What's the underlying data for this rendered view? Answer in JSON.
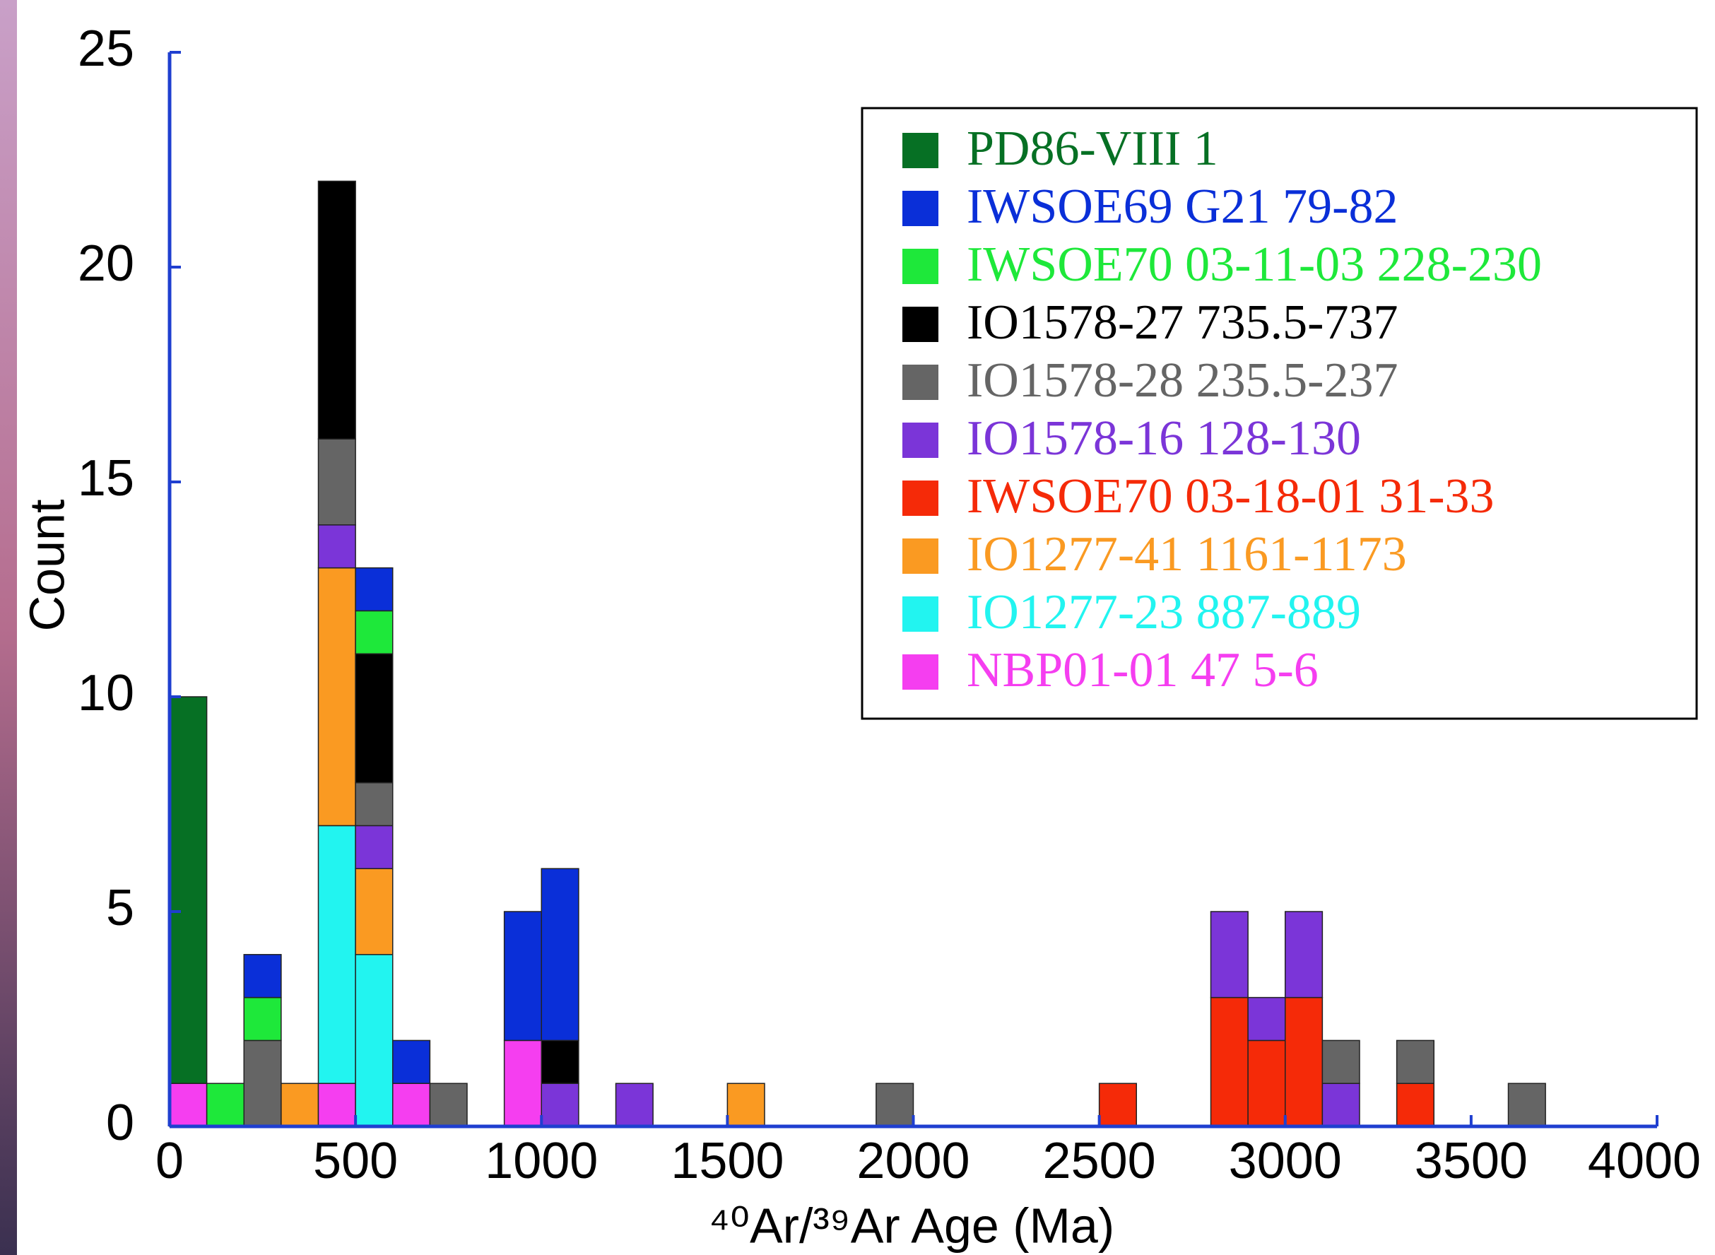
{
  "chart_data": {
    "type": "stacked-histogram",
    "x_label": "⁴⁰Ar/³⁹Ar Age (Ma)",
    "y_label": "Count",
    "bins": [
      0,
      100,
      200,
      300,
      400,
      500,
      600,
      700,
      800,
      900,
      1000,
      1100,
      1200,
      1300,
      1400,
      1500,
      1600,
      1700,
      1800,
      1900,
      2000,
      2100,
      2200,
      2300,
      2400,
      2500,
      2600,
      2700,
      2800,
      2900,
      3000,
      3100,
      3200,
      3300,
      3400,
      3500,
      3600,
      3700,
      3800,
      3900,
      4000
    ],
    "xlim": [
      0,
      4000
    ],
    "xticks": [
      0,
      500,
      1000,
      1500,
      2000,
      2500,
      3000,
      3500,
      4000
    ],
    "ylim": [
      0,
      25
    ],
    "yticks": [
      0,
      5,
      10,
      15,
      20,
      25
    ],
    "axis_color": "#1f3fd0",
    "series": [
      {
        "name": "PD86-VIII 1",
        "color": "#067024",
        "values": [
          9,
          0,
          0,
          0,
          0,
          0,
          0,
          0,
          0,
          0,
          0,
          0,
          0,
          0,
          0,
          0,
          0,
          0,
          0,
          0,
          0,
          0,
          0,
          0,
          0,
          0,
          0,
          0,
          0,
          0,
          0,
          0,
          0,
          0,
          0,
          0,
          0,
          0,
          0,
          0
        ]
      },
      {
        "name": "IWSOE69 G21 79-82",
        "color": "#0a2fd8",
        "values": [
          0,
          0,
          1,
          0,
          0,
          1,
          1,
          0,
          0,
          3,
          4,
          0,
          0,
          0,
          0,
          0,
          0,
          0,
          0,
          0,
          0,
          0,
          0,
          0,
          0,
          0,
          0,
          0,
          0,
          0,
          0,
          0,
          0,
          0,
          0,
          0,
          0,
          0,
          0,
          0
        ]
      },
      {
        "name": "IWSOE70 03-11-03 228-230",
        "color": "#1ee83a",
        "values": [
          0,
          1,
          1,
          0,
          0,
          1,
          0,
          0,
          0,
          0,
          0,
          0,
          0,
          0,
          0,
          0,
          0,
          0,
          0,
          0,
          0,
          0,
          0,
          0,
          0,
          0,
          0,
          0,
          0,
          0,
          0,
          0,
          0,
          0,
          0,
          0,
          0,
          0,
          0,
          0
        ]
      },
      {
        "name": "IO1578-27 735.5-737",
        "color": "#000000",
        "values": [
          0,
          0,
          0,
          0,
          6,
          3,
          0,
          0,
          0,
          0,
          1,
          0,
          0,
          0,
          0,
          0,
          0,
          0,
          0,
          0,
          0,
          0,
          0,
          0,
          0,
          0,
          0,
          0,
          0,
          0,
          0,
          0,
          0,
          0,
          0,
          0,
          0,
          0,
          0,
          0
        ]
      },
      {
        "name": "IO1578-28 235.5-237",
        "color": "#656565",
        "values": [
          0,
          0,
          2,
          0,
          2,
          1,
          0,
          1,
          0,
          0,
          0,
          0,
          0,
          0,
          0,
          0,
          0,
          0,
          0,
          1,
          0,
          0,
          0,
          0,
          0,
          0,
          0,
          0,
          0,
          0,
          0,
          1,
          0,
          1,
          0,
          0,
          1,
          0,
          0,
          0
        ]
      },
      {
        "name": "IO1578-16 128-130",
        "color": "#7b35d8",
        "values": [
          0,
          0,
          0,
          0,
          1,
          1,
          0,
          0,
          0,
          0,
          1,
          0,
          1,
          0,
          0,
          0,
          0,
          0,
          0,
          0,
          0,
          0,
          0,
          0,
          0,
          0,
          0,
          0,
          2,
          1,
          2,
          1,
          0,
          0,
          0,
          0,
          0,
          0,
          0,
          0
        ]
      },
      {
        "name": "IWSOE70 03-18-01 31-33",
        "color": "#f52a08",
        "values": [
          0,
          0,
          0,
          0,
          0,
          0,
          0,
          0,
          0,
          0,
          0,
          0,
          0,
          0,
          0,
          0,
          0,
          0,
          0,
          0,
          0,
          0,
          0,
          0,
          0,
          1,
          0,
          0,
          3,
          2,
          3,
          0,
          0,
          1,
          0,
          0,
          0,
          0,
          0,
          0
        ]
      },
      {
        "name": "IO1277-41 1161-1173",
        "color": "#fa9a22",
        "values": [
          0,
          0,
          0,
          1,
          6,
          2,
          0,
          0,
          0,
          0,
          0,
          0,
          0,
          0,
          0,
          1,
          0,
          0,
          0,
          0,
          0,
          0,
          0,
          0,
          0,
          0,
          0,
          0,
          0,
          0,
          0,
          0,
          0,
          0,
          0,
          0,
          0,
          0,
          0,
          0
        ]
      },
      {
        "name": "IO1277-23 887-889",
        "color": "#22f4f0",
        "values": [
          0,
          0,
          0,
          0,
          6,
          4,
          0,
          0,
          0,
          0,
          0,
          0,
          0,
          0,
          0,
          0,
          0,
          0,
          0,
          0,
          0,
          0,
          0,
          0,
          0,
          0,
          0,
          0,
          0,
          0,
          0,
          0,
          0,
          0,
          0,
          0,
          0,
          0,
          0,
          0
        ]
      },
      {
        "name": "NBP01-01 47 5-6",
        "color": "#f53ef0",
        "values": [
          1,
          0,
          0,
          0,
          1,
          0,
          1,
          0,
          0,
          2,
          0,
          0,
          0,
          0,
          0,
          0,
          0,
          0,
          0,
          0,
          0,
          0,
          0,
          0,
          0,
          0,
          0,
          0,
          0,
          0,
          0,
          0,
          0,
          0,
          0,
          0,
          0,
          0,
          0,
          0
        ]
      }
    ]
  }
}
